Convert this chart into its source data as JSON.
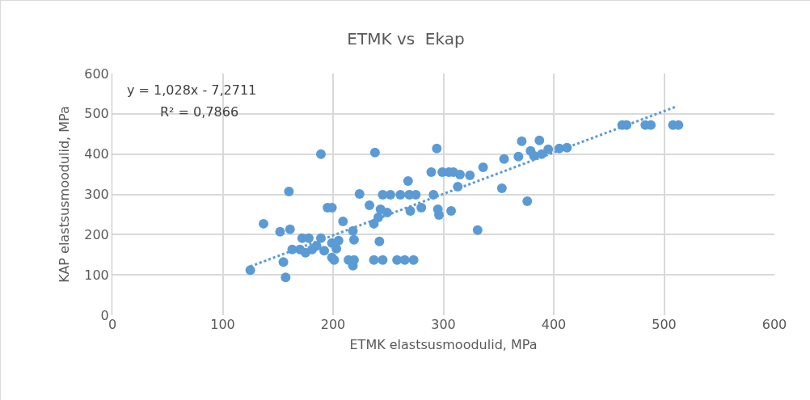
{
  "chart_data": {
    "type": "scatter",
    "title": "ETMK vs  Ekap",
    "xlabel": "ETMK elastsusmoodulid, MPa",
    "ylabel": "KAP elastsusmoodulid, MPa",
    "annotations": [
      "y = 1,028x - 7,2711",
      "R² = 0,7866"
    ],
    "xlim": [
      0,
      600
    ],
    "ylim": [
      0,
      600
    ],
    "xticks": [
      0,
      100,
      200,
      300,
      400,
      500,
      600
    ],
    "yticks": [
      0,
      100,
      200,
      300,
      400,
      500,
      600
    ],
    "grid": true,
    "marker": "circle",
    "series": [
      {
        "color": "#5b9bd5",
        "x": [
          125,
          137,
          152,
          160,
          161,
          155,
          157,
          163,
          170,
          172,
          178,
          181,
          175,
          185,
          189,
          189,
          192,
          195,
          199,
          199,
          203,
          199,
          201,
          205,
          209,
          218,
          219,
          214,
          219,
          218,
          224,
          233,
          237,
          238,
          237,
          245,
          242,
          241,
          243,
          245,
          252,
          249,
          258,
          265,
          273,
          261,
          269,
          275,
          268,
          270,
          280,
          291,
          289,
          294,
          296,
          295,
          299,
          305,
          309,
          315,
          307,
          313,
          324,
          331,
          336,
          353,
          355,
          368,
          371,
          376,
          379,
          382,
          387,
          389,
          395,
          405,
          412,
          462,
          466,
          483,
          488,
          508,
          513
        ],
        "values": [
          112,
          227,
          207,
          307,
          213,
          132,
          94,
          163,
          163,
          191,
          191,
          163,
          155,
          172,
          191,
          400,
          160,
          267,
          267,
          179,
          165,
          143,
          137,
          185,
          233,
          209,
          187,
          137,
          137,
          123,
          301,
          273,
          227,
          404,
          137,
          137,
          183,
          243,
          263,
          299,
          299,
          255,
          137,
          137,
          137,
          299,
          299,
          299,
          333,
          259,
          267,
          299,
          355,
          414,
          249,
          263,
          355,
          355,
          355,
          349,
          259,
          319,
          347,
          211,
          367,
          315,
          388,
          394,
          432,
          283,
          408,
          396,
          434,
          400,
          412,
          414,
          416,
          472,
          472,
          472,
          472,
          472,
          472
        ]
      },
      {
        "type": "line",
        "color": "#5b9bd5",
        "line_style": "dotted",
        "marker": "none",
        "x": [
          125,
          512
        ],
        "values": [
          121,
          519
        ]
      }
    ]
  }
}
